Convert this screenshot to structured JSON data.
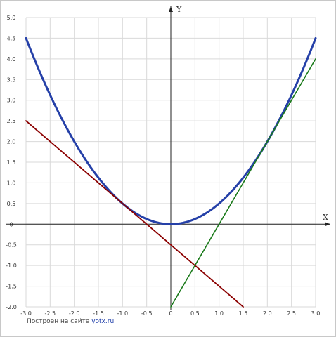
{
  "chart_data": {
    "type": "line",
    "xlabel": "X",
    "ylabel": "Y",
    "xlim": [
      -3.0,
      3.0
    ],
    "ylim": [
      -2.0,
      5.0
    ],
    "grid": true,
    "x_ticks": [
      "-3.0",
      "-2.5",
      "-2.0",
      "-1.5",
      "-1.0",
      "-0.5",
      "0",
      "0.5",
      "1.0",
      "1.5",
      "2.0",
      "2.5",
      "3.0"
    ],
    "y_ticks": [
      "-2.0",
      "-1.5",
      "-1.0",
      "-0.5",
      "0",
      "0.5",
      "1.0",
      "1.5",
      "2.0",
      "2.5",
      "3.0",
      "3.5",
      "4.0",
      "4.5",
      "5.0"
    ],
    "series": [
      {
        "function": "y = x^2/2",
        "x_range": [
          -3.0,
          3.0
        ],
        "color": "#2540a8",
        "points": [
          [
            -3.0,
            4.5
          ],
          [
            -2.0,
            2.0
          ],
          [
            -1.0,
            0.5
          ],
          [
            0,
            0
          ],
          [
            1.0,
            0.5
          ],
          [
            2.0,
            2.0
          ],
          [
            3.0,
            4.5
          ]
        ]
      },
      {
        "function": "y = -x - 0.5",
        "x_range": [
          -3.0,
          1.5
        ],
        "color": "#8b0000",
        "points": [
          [
            -3.0,
            2.5
          ],
          [
            1.5,
            -2.0
          ]
        ]
      },
      {
        "function": "y = 2x - 2",
        "x_range": [
          0.0,
          3.0
        ],
        "color": "#1a7a1a",
        "points": [
          [
            0.0,
            -2.0
          ],
          [
            3.0,
            4.0
          ]
        ]
      }
    ]
  },
  "footer": {
    "prefix": "Построен на сайте",
    "link": "yotx.ru"
  }
}
